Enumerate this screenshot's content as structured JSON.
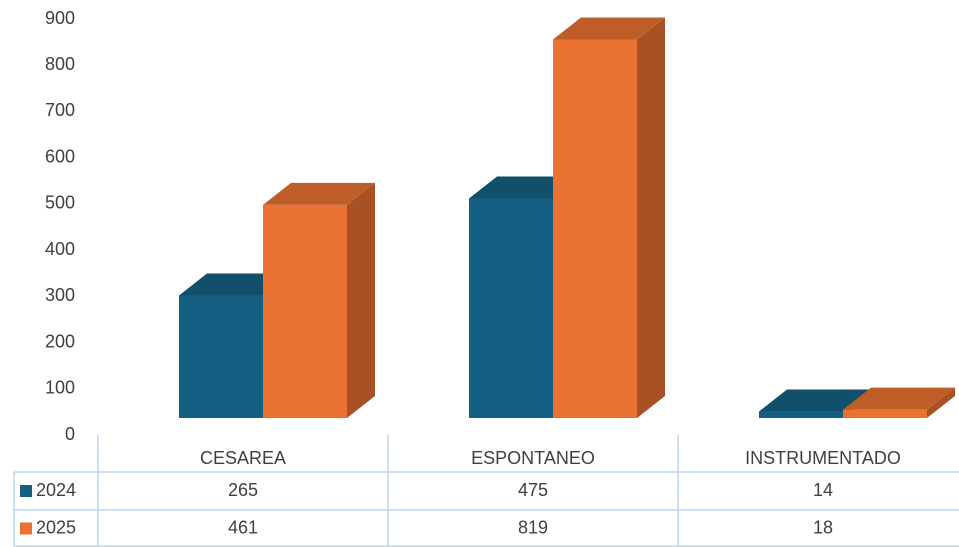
{
  "chart_data": {
    "type": "bar3d",
    "categories": [
      "CESAREA",
      "ESPONTANEO",
      "INSTRUMENTADO"
    ],
    "series": [
      {
        "name": "2024",
        "color": "#156082",
        "values": [
          265,
          475,
          14
        ]
      },
      {
        "name": "2025",
        "color": "#e97132",
        "values": [
          461,
          819,
          18
        ]
      }
    ],
    "ylim": [
      0,
      900
    ],
    "yticks": [
      0,
      100,
      200,
      300,
      400,
      500,
      600,
      700,
      800,
      900
    ],
    "data_table": true
  }
}
